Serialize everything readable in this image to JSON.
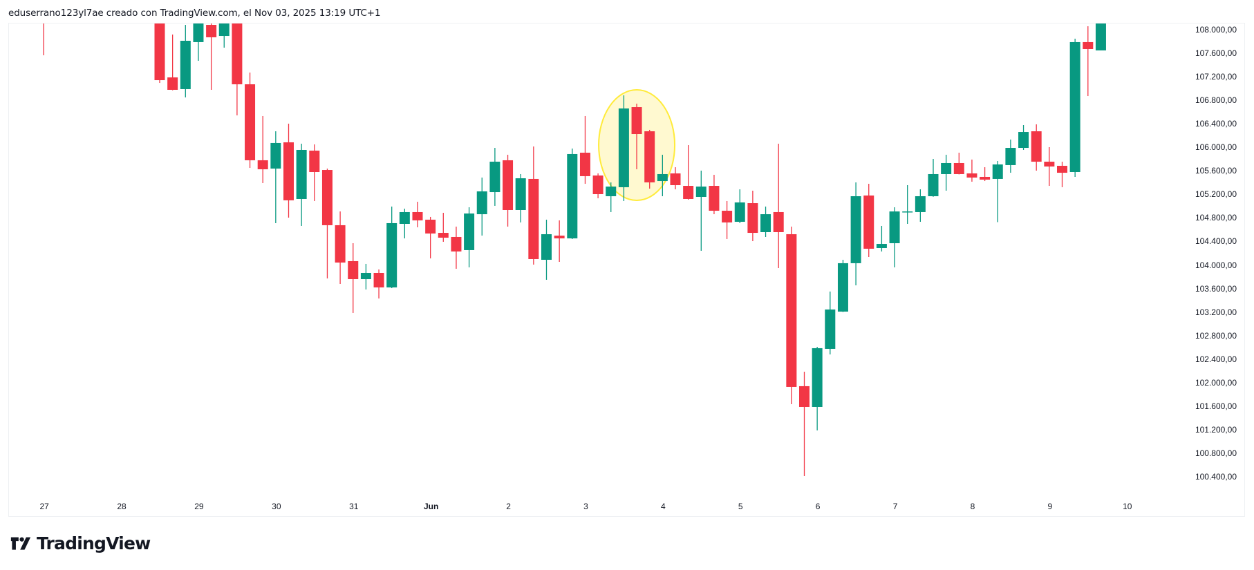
{
  "header": {
    "caption": "eduserrano123yl7ae creado con TradingView.com, el Nov 03, 2025 13:19 UTC+1"
  },
  "branding": {
    "logo_icon": "tradingview-logo-icon",
    "logo_text": "TradingView"
  },
  "colors": {
    "up": "#089981",
    "down": "#F23645",
    "highlight_fill": "#FFF9D0",
    "highlight_stroke": "#FFEB3B",
    "panel_border": "#EEF0F3",
    "text": "#131722"
  },
  "price_axis": {
    "labels": [
      "108.000,00",
      "107.600,00",
      "107.200,00",
      "106.800,00",
      "106.400,00",
      "106.000,00",
      "105.600,00",
      "105.200,00",
      "104.800,00",
      "104.400,00",
      "104.000,00",
      "103.600,00",
      "103.200,00",
      "102.800,00",
      "102.400,00",
      "102.000,00",
      "101.600,00",
      "101.200,00",
      "100.800,00",
      "100.400,00"
    ]
  },
  "time_axis": {
    "labels": [
      "27",
      "28",
      "29",
      "30",
      "31",
      "Jun",
      "2",
      "3",
      "4",
      "5",
      "6",
      "7",
      "8",
      "9",
      "10"
    ]
  },
  "chart_data": {
    "type": "candlestick",
    "title": "",
    "interval": "4h",
    "xlabel": "",
    "ylabel": "",
    "ylim": [
      100000,
      108200
    ],
    "y_ticks": [
      108000,
      107600,
      107200,
      106800,
      106400,
      106000,
      105600,
      105200,
      104800,
      104400,
      104000,
      103600,
      103200,
      102800,
      102400,
      102000,
      101600,
      101200,
      100800,
      100400
    ],
    "x_tick_labels": [
      "27",
      "28",
      "29",
      "30",
      "31",
      "Jun",
      "2",
      "3",
      "4",
      "5",
      "6",
      "7",
      "8",
      "9",
      "10"
    ],
    "x_tick_candle_index": [
      -9,
      -3,
      3,
      9,
      15,
      21,
      27,
      33,
      39,
      45,
      51,
      57,
      63,
      69,
      75
    ],
    "grid": false,
    "annotations": [
      {
        "type": "ellipse",
        "label": "highlight",
        "candle_range": [
          35,
          39
        ],
        "center_price": 106000,
        "color": "#FFEB3B"
      }
    ],
    "columns": [
      "i",
      "open",
      "high",
      "low",
      "close"
    ],
    "candles": [
      [
        -9,
        108400,
        108500,
        107565,
        108300
      ],
      [
        0,
        108300,
        108400,
        107095,
        107142
      ],
      [
        1,
        107189,
        107918,
        106970,
        106978
      ],
      [
        2,
        106990,
        108082,
        106849,
        107812
      ],
      [
        3,
        107789,
        108150,
        107471,
        108120
      ],
      [
        4,
        108082,
        108150,
        106978,
        107871
      ],
      [
        5,
        107894,
        108200,
        107695,
        108150
      ],
      [
        6,
        108200,
        108250,
        106543,
        107072
      ],
      [
        7,
        107072,
        107272,
        105651,
        105780
      ],
      [
        8,
        105780,
        106532,
        105392,
        105627
      ],
      [
        9,
        105639,
        106273,
        104711,
        106074
      ],
      [
        10,
        106085,
        106402,
        104805,
        105099
      ],
      [
        11,
        105122,
        106062,
        104664,
        105956
      ],
      [
        12,
        105944,
        106050,
        105087,
        105580
      ],
      [
        13,
        105615,
        105639,
        103771,
        104676
      ],
      [
        14,
        104676,
        104910,
        103677,
        104041
      ],
      [
        15,
        104065,
        104370,
        103184,
        103759
      ],
      [
        16,
        103759,
        104018,
        103583,
        103865
      ],
      [
        17,
        103865,
        103924,
        103430,
        103618
      ],
      [
        18,
        103618,
        104993,
        103606,
        104711
      ],
      [
        19,
        104699,
        104957,
        104452,
        104899
      ],
      [
        20,
        104899,
        105075,
        104640,
        104758
      ],
      [
        21,
        104770,
        104817,
        104112,
        104535
      ],
      [
        22,
        104546,
        104887,
        104394,
        104464
      ],
      [
        23,
        104476,
        104652,
        103935,
        104229
      ],
      [
        24,
        104253,
        104981,
        103959,
        104875
      ],
      [
        25,
        104863,
        105486,
        104500,
        105251
      ],
      [
        26,
        105239,
        105991,
        105005,
        105756
      ],
      [
        27,
        105780,
        105874,
        104652,
        104934
      ],
      [
        28,
        104934,
        105545,
        104723,
        105474
      ],
      [
        29,
        105463,
        106015,
        104006,
        104100
      ],
      [
        30,
        104088,
        104770,
        103748,
        104523
      ],
      [
        31,
        104499,
        104758,
        104053,
        104452
      ],
      [
        32,
        104452,
        105980,
        104440,
        105886
      ],
      [
        33,
        105909,
        106532,
        105380,
        105510
      ],
      [
        34,
        105521,
        105557,
        105134,
        105204
      ],
      [
        35,
        105169,
        105404,
        104899,
        105333
      ],
      [
        36,
        105322,
        106884,
        105087,
        106661
      ],
      [
        37,
        106684,
        106743,
        105627,
        106226
      ],
      [
        38,
        106273,
        106297,
        105298,
        105404
      ],
      [
        39,
        105427,
        105874,
        105169,
        105545
      ],
      [
        40,
        105557,
        105662,
        105286,
        105357
      ],
      [
        41,
        105345,
        106038,
        105110,
        105122
      ],
      [
        42,
        105157,
        105604,
        104241,
        105333
      ],
      [
        43,
        105345,
        105533,
        104863,
        104922
      ],
      [
        44,
        104922,
        105087,
        104441,
        104723
      ],
      [
        45,
        104734,
        105286,
        104711,
        105063
      ],
      [
        46,
        105051,
        105263,
        104405,
        104546
      ],
      [
        47,
        104558,
        104993,
        104476,
        104863
      ],
      [
        48,
        104899,
        106062,
        103947,
        104558
      ],
      [
        49,
        104523,
        104652,
        101633,
        101927
      ],
      [
        50,
        101939,
        102185,
        100411,
        101586
      ],
      [
        51,
        101586,
        102608,
        101187,
        102585
      ],
      [
        52,
        102573,
        103548,
        102479,
        103243
      ],
      [
        53,
        103207,
        104088,
        103200,
        104030
      ],
      [
        54,
        104030,
        105404,
        103653,
        105169
      ],
      [
        55,
        105181,
        105380,
        104135,
        104276
      ],
      [
        56,
        104288,
        104664,
        104229,
        104358
      ],
      [
        57,
        104370,
        104981,
        103959,
        104910
      ],
      [
        58,
        104899,
        105357,
        104699,
        104910
      ],
      [
        59,
        104899,
        105286,
        104734,
        105169
      ],
      [
        60,
        105169,
        105803,
        105160,
        105545
      ],
      [
        61,
        105545,
        105874,
        105263,
        105733
      ],
      [
        62,
        105733,
        105909,
        105540,
        105545
      ],
      [
        63,
        105557,
        105792,
        105416,
        105486
      ],
      [
        64,
        105498,
        105662,
        105427,
        105451
      ],
      [
        65,
        105463,
        105768,
        104728,
        105709
      ],
      [
        66,
        105698,
        106132,
        105568,
        105991
      ],
      [
        67,
        105991,
        106379,
        105956,
        106261
      ],
      [
        68,
        106273,
        106391,
        105604,
        105756
      ],
      [
        69,
        105756,
        106003,
        105345,
        105674
      ],
      [
        70,
        105686,
        105756,
        105322,
        105568
      ],
      [
        71,
        105580,
        107847,
        105498,
        107789
      ],
      [
        72,
        107789,
        108059,
        106872,
        107671
      ],
      [
        73,
        107648,
        108400,
        107648,
        108300
      ]
    ]
  }
}
